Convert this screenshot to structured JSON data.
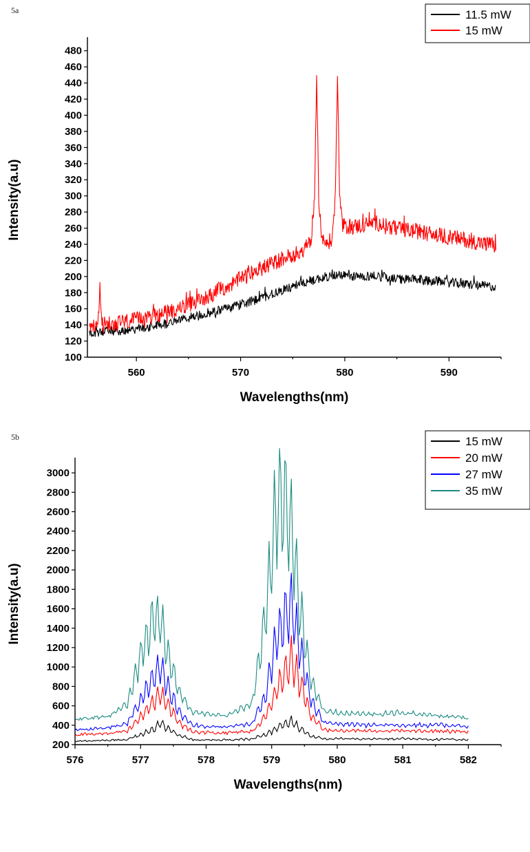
{
  "panels": [
    {
      "label": "5a"
    },
    {
      "label": "5b"
    }
  ],
  "chart_data": [
    {
      "type": "line",
      "panel_label": "5a",
      "xlabel": "Wavelengths(nm)",
      "ylabel": "Intensity(a.u)",
      "xlim": [
        555.3,
        595.0
      ],
      "ylim": [
        100,
        490
      ],
      "x_ticks": [
        560,
        570,
        580,
        590
      ],
      "y_ticks": [
        100,
        120,
        140,
        160,
        180,
        200,
        220,
        240,
        260,
        280,
        300,
        320,
        340,
        360,
        380,
        400,
        420,
        440,
        460,
        480
      ],
      "legend_position": "top-right",
      "series": [
        {
          "name": "11.5 mW",
          "color": "#000000",
          "x": [
            555.5,
            557,
            559,
            561,
            563,
            565,
            567,
            569,
            571,
            573,
            575,
            577,
            579,
            581,
            583,
            585,
            587,
            589,
            591,
            593,
            594.5
          ],
          "y": [
            130,
            132,
            133,
            137,
            142,
            148,
            155,
            162,
            169,
            178,
            188,
            196,
            202,
            200,
            201,
            197,
            196,
            194,
            191,
            189,
            187
          ]
        },
        {
          "name": "15 mW",
          "color": "#ff0000",
          "x": [
            555.5,
            556.3,
            556.5,
            556.7,
            558,
            560,
            562,
            564,
            566,
            568,
            570,
            572,
            574,
            576,
            576.8,
            577.1,
            577.3,
            577.5,
            577.8,
            578.3,
            578.8,
            579.1,
            579.3,
            579.5,
            579.8,
            581,
            583,
            585,
            587,
            589,
            591,
            593,
            594.5
          ],
          "y": [
            135,
            138,
            185,
            140,
            142,
            146,
            152,
            160,
            170,
            183,
            197,
            210,
            222,
            232,
            245,
            300,
            440,
            300,
            245,
            240,
            248,
            300,
            458,
            300,
            262,
            262,
            267,
            259,
            256,
            251,
            247,
            242,
            238
          ]
        }
      ]
    },
    {
      "type": "line",
      "panel_label": "5b",
      "xlabel": "Wavelengths(nm)",
      "ylabel": "Intensity(a.u)",
      "xlim": [
        576,
        582.5
      ],
      "ylim": [
        200,
        3100
      ],
      "x_ticks": [
        576,
        577,
        578,
        579,
        580,
        581,
        582
      ],
      "y_ticks": [
        200,
        400,
        600,
        800,
        1000,
        1200,
        1400,
        1600,
        1800,
        2000,
        2200,
        2400,
        2600,
        2800,
        3000
      ],
      "legend_position": "top-right",
      "series": [
        {
          "name": "15 mW",
          "color": "#000000",
          "x": [
            576,
            576.5,
            576.8,
            577.0,
            577.2,
            577.3,
            577.4,
            577.6,
            577.8,
            578.3,
            578.7,
            578.9,
            579.1,
            579.3,
            579.4,
            579.6,
            579.8,
            580.5,
            581,
            581.5,
            582
          ],
          "y": [
            235,
            245,
            255,
            300,
            360,
            430,
            370,
            290,
            250,
            248,
            260,
            300,
            380,
            440,
            380,
            290,
            260,
            258,
            262,
            255,
            250
          ]
        },
        {
          "name": "20 mW",
          "color": "#ff0000",
          "x": [
            576,
            576.5,
            576.8,
            577.0,
            577.2,
            577.3,
            577.4,
            577.6,
            577.8,
            578.3,
            578.7,
            578.9,
            579.1,
            579.3,
            579.4,
            579.6,
            579.8,
            580.5,
            581,
            581.5,
            582
          ],
          "y": [
            305,
            315,
            340,
            480,
            640,
            730,
            620,
            420,
            330,
            320,
            340,
            480,
            800,
            1080,
            900,
            500,
            350,
            340,
            345,
            340,
            335
          ]
        },
        {
          "name": "27 mW",
          "color": "#0000ff",
          "x": [
            576,
            576.5,
            576.8,
            577.0,
            577.2,
            577.3,
            577.4,
            577.6,
            577.8,
            578.3,
            578.7,
            578.9,
            579.1,
            579.3,
            579.4,
            579.6,
            579.8,
            580.5,
            581,
            581.5,
            582
          ],
          "y": [
            350,
            370,
            420,
            650,
            900,
            1000,
            820,
            520,
            400,
            380,
            420,
            700,
            1350,
            1630,
            1300,
            650,
            420,
            400,
            405,
            400,
            395
          ]
        },
        {
          "name": "35 mW",
          "color": "#1a8a80",
          "x": [
            576,
            576.5,
            576.8,
            577.0,
            577.2,
            577.3,
            577.4,
            577.6,
            577.8,
            578.3,
            578.7,
            578.9,
            579.1,
            579.3,
            579.4,
            579.6,
            579.8,
            580.5,
            581,
            581.5,
            582
          ],
          "y": [
            460,
            490,
            620,
            1100,
            1500,
            1480,
            1180,
            720,
            530,
            500,
            620,
            1500,
            2790,
            2450,
            1800,
            850,
            540,
            510,
            530,
            500,
            475
          ]
        }
      ]
    }
  ]
}
